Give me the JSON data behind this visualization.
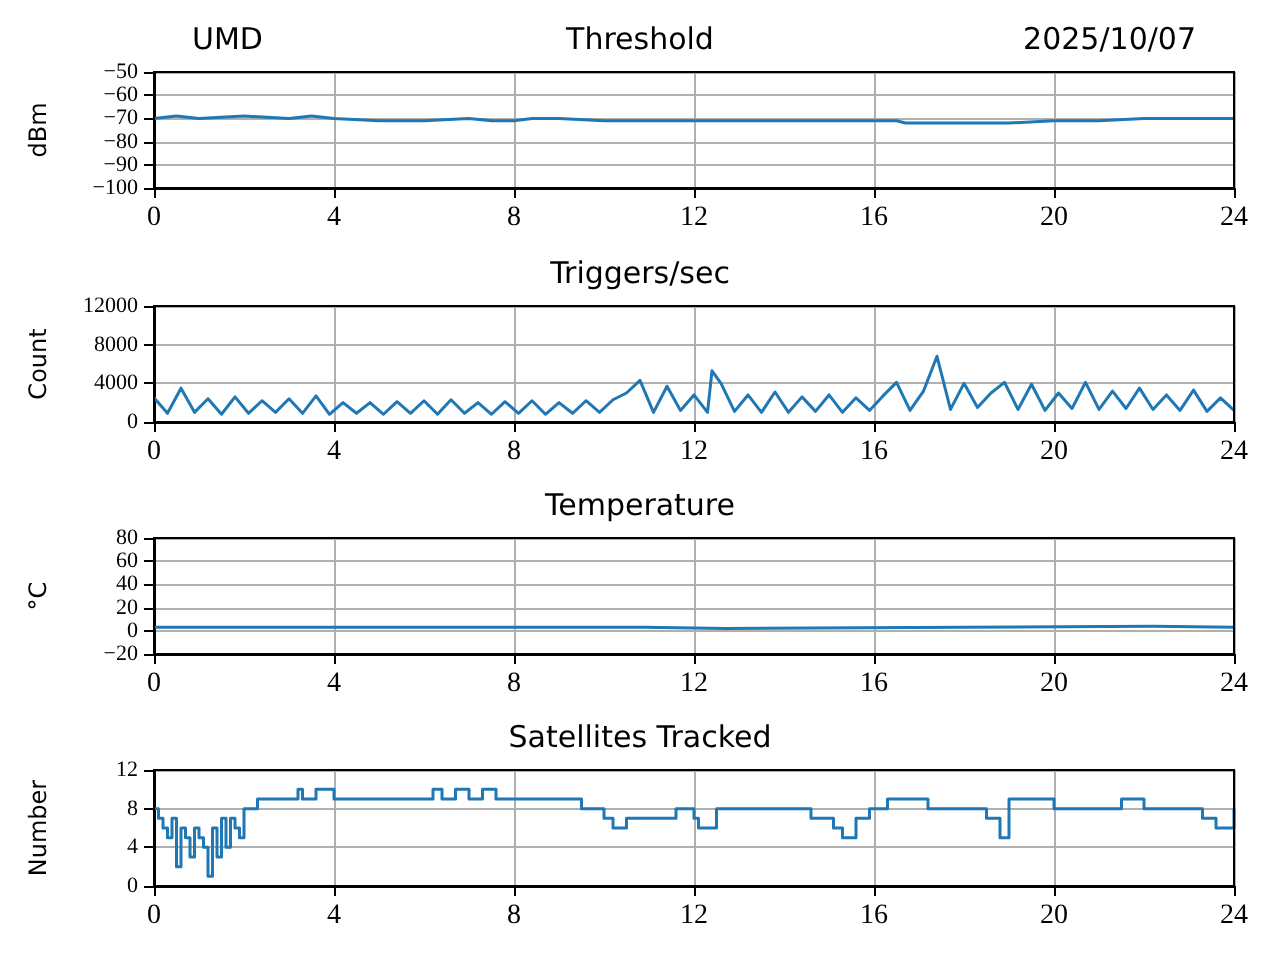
{
  "chart_data": [
    {
      "type": "line",
      "title": "Threshold",
      "ylabel": "dBm",
      "annotations": [
        "UMD",
        "2025/10/07"
      ],
      "xlim": [
        0,
        24
      ],
      "xticks": [
        0,
        4,
        8,
        12,
        16,
        20,
        24
      ],
      "ylim": [
        -100,
        -50
      ],
      "yticks": [
        -100,
        -90,
        -80,
        -70,
        -60,
        -50
      ],
      "grid": true,
      "series": [
        {
          "color": "#1f77b4",
          "x": [
            0,
            0.5,
            1,
            2,
            3,
            3.5,
            4,
            5,
            6,
            7,
            7.5,
            8,
            8.4,
            9,
            10,
            11,
            12,
            13,
            14,
            15,
            16,
            16.5,
            16.7,
            17,
            18,
            18.5,
            19,
            20,
            21,
            22,
            23,
            24
          ],
          "values": [
            -70,
            -69,
            -70,
            -69,
            -70,
            -69,
            -70,
            -71,
            -71,
            -70,
            -71,
            -71,
            -70,
            -70,
            -71,
            -71,
            -71,
            -71,
            -71,
            -71,
            -71,
            -71,
            -72,
            -72,
            -72,
            -72,
            -72,
            -71,
            -71,
            -70,
            -70,
            -70
          ]
        }
      ]
    },
    {
      "type": "line",
      "title": "Triggers/sec",
      "ylabel": "Count",
      "xlim": [
        0,
        24
      ],
      "xticks": [
        0,
        4,
        8,
        12,
        16,
        20,
        24
      ],
      "ylim": [
        0,
        12000
      ],
      "yticks": [
        0,
        4000,
        8000,
        12000
      ],
      "grid": true,
      "series": [
        {
          "color": "#1f77b4",
          "x": [
            0,
            0.3,
            0.6,
            0.9,
            1.2,
            1.5,
            1.8,
            2.1,
            2.4,
            2.7,
            3,
            3.3,
            3.6,
            3.9,
            4.2,
            4.5,
            4.8,
            5.1,
            5.4,
            5.7,
            6,
            6.3,
            6.6,
            6.9,
            7.2,
            7.5,
            7.8,
            8.1,
            8.4,
            8.7,
            9,
            9.3,
            9.6,
            9.9,
            10.2,
            10.5,
            10.8,
            11.1,
            11.4,
            11.7,
            12,
            12.3,
            12.4,
            12.6,
            12.9,
            13.2,
            13.5,
            13.8,
            14.1,
            14.4,
            14.7,
            15,
            15.3,
            15.6,
            15.9,
            16.2,
            16.5,
            16.8,
            17.1,
            17.4,
            17.7,
            18,
            18.3,
            18.6,
            18.9,
            19.2,
            19.5,
            19.8,
            20.1,
            20.4,
            20.7,
            21,
            21.3,
            21.6,
            21.9,
            22.2,
            22.5,
            22.8,
            23.1,
            23.4,
            23.7,
            24
          ],
          "values": [
            2500,
            900,
            3500,
            1000,
            2400,
            800,
            2600,
            900,
            2200,
            1000,
            2400,
            900,
            2700,
            800,
            2000,
            900,
            2000,
            800,
            2100,
            900,
            2200,
            800,
            2300,
            900,
            2000,
            800,
            2100,
            900,
            2200,
            800,
            2000,
            900,
            2200,
            1000,
            2300,
            3000,
            4300,
            1000,
            3700,
            1200,
            2800,
            1000,
            5300,
            4000,
            1100,
            2800,
            1000,
            3100,
            1000,
            2600,
            1100,
            2800,
            1000,
            2500,
            1200,
            2700,
            4100,
            1200,
            3200,
            6800,
            1300,
            4000,
            1500,
            3000,
            4100,
            1300,
            3900,
            1200,
            3000,
            1400,
            4100,
            1300,
            3200,
            1400,
            3500,
            1300,
            2800,
            1200,
            3300,
            1100,
            2500,
            1200
          ]
        }
      ]
    },
    {
      "type": "step",
      "title": "Temperature",
      "ylabel": "°C",
      "xlim": [
        0,
        24
      ],
      "xticks": [
        0,
        4,
        8,
        12,
        16,
        20,
        24
      ],
      "ylim": [
        -20,
        80
      ],
      "yticks": [
        -20,
        0,
        20,
        40,
        60,
        80
      ],
      "grid": true,
      "series": [
        {
          "color": "#1f77b4",
          "x": [
            0,
            10.9,
            12.7,
            18,
            22.2,
            24
          ],
          "values": [
            3,
            2,
            3,
            4,
            3,
            3
          ]
        }
      ]
    },
    {
      "type": "step",
      "title": "Satellites Tracked",
      "ylabel": "Number",
      "xlim": [
        0,
        24
      ],
      "xticks": [
        0,
        4,
        8,
        12,
        16,
        20,
        24
      ],
      "ylim": [
        0,
        12
      ],
      "yticks": [
        0,
        4,
        8,
        12
      ],
      "grid": true,
      "series": [
        {
          "color": "#1f77b4",
          "x": [
            0,
            0.1,
            0.2,
            0.3,
            0.4,
            0.5,
            0.6,
            0.7,
            0.8,
            0.9,
            1.0,
            1.1,
            1.2,
            1.3,
            1.4,
            1.5,
            1.6,
            1.7,
            1.8,
            1.9,
            2.0,
            2.3,
            3.2,
            3.3,
            3.6,
            3.8,
            4.0,
            4.6,
            5.0,
            5.5,
            6.2,
            6.4,
            6.7,
            7.0,
            7.3,
            7.6,
            8.5,
            9.2,
            9.5,
            10.0,
            10.2,
            10.5,
            11.0,
            11.6,
            12.0,
            12.1,
            12.5,
            13.0,
            13.8,
            14.0,
            14.3,
            14.6,
            15.1,
            15.3,
            15.6,
            15.9,
            16.0,
            16.3,
            17.2,
            17.5,
            18.0,
            18.5,
            18.7,
            18.8,
            19.0,
            19.5,
            20.0,
            21.0,
            21.5,
            22.0,
            23.0,
            23.3,
            23.6,
            24
          ],
          "values": [
            8,
            7,
            6,
            5,
            7,
            2,
            6,
            5,
            3,
            6,
            5,
            4,
            1,
            6,
            3,
            7,
            4,
            7,
            6,
            5,
            8,
            9,
            10,
            9,
            10,
            10,
            9,
            9,
            9,
            9,
            10,
            9,
            10,
            9,
            10,
            9,
            9,
            9,
            8,
            7,
            6,
            7,
            7,
            8,
            7,
            6,
            8,
            8,
            8,
            8,
            8,
            7,
            6,
            5,
            7,
            8,
            8,
            9,
            8,
            8,
            8,
            7,
            7,
            5,
            9,
            9,
            8,
            8,
            9,
            8,
            8,
            7,
            6,
            8
          ]
        }
      ]
    }
  ]
}
